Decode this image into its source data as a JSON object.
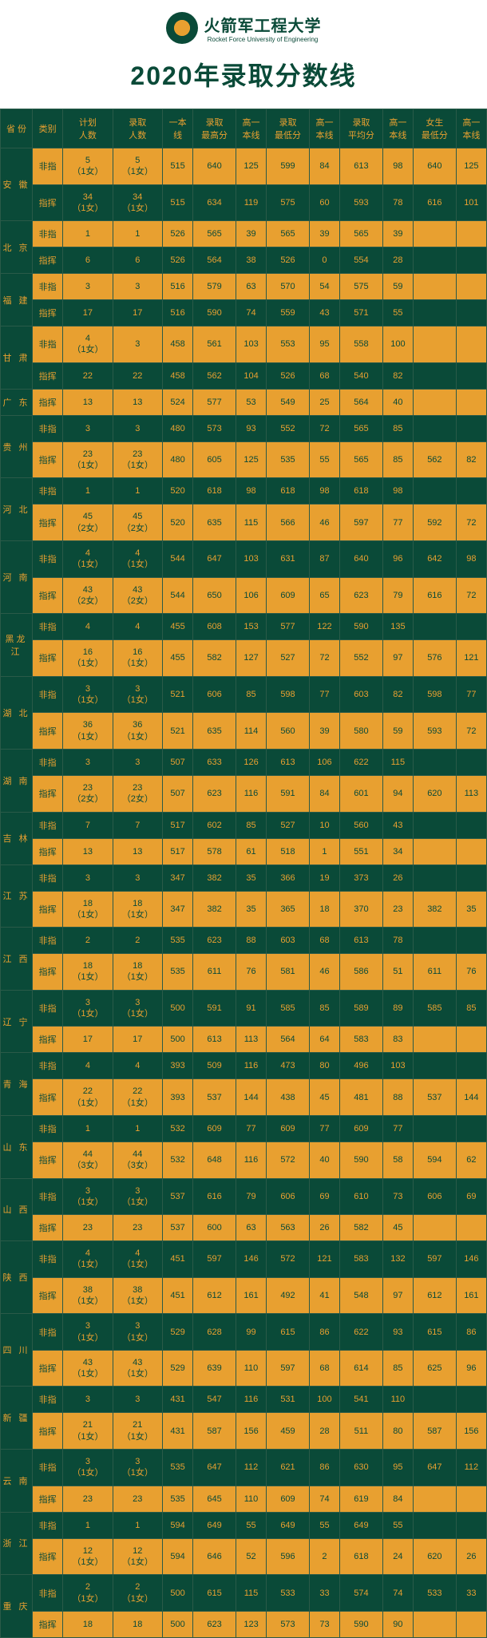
{
  "header": {
    "uni_name": "火箭军工程大学",
    "uni_sub": "Rocket Force University of Engineering",
    "title": "2020年录取分数线"
  },
  "columns": [
    "省 份",
    "类别",
    "计划人数",
    "录取人数",
    "一本线",
    "录取最高分",
    "高一本线",
    "录取最低分",
    "高一本线",
    "录取平均分",
    "高一本线",
    "女生最低分",
    "高一本线"
  ],
  "provinces": [
    {
      "name": "安 徽",
      "rows": [
        {
          "cat": "非指",
          "plan": "5\n（1女）",
          "admit": "5\n（1女）",
          "c": [
            "515",
            "640",
            "125",
            "599",
            "84",
            "613",
            "98",
            "640",
            "125"
          ]
        },
        {
          "cat": "指挥",
          "plan": "34\n（1女）",
          "admit": "34\n（1女）",
          "c": [
            "515",
            "634",
            "119",
            "575",
            "60",
            "593",
            "78",
            "616",
            "101"
          ]
        }
      ]
    },
    {
      "name": "北 京",
      "rows": [
        {
          "cat": "非指",
          "plan": "1",
          "admit": "1",
          "c": [
            "526",
            "565",
            "39",
            "565",
            "39",
            "565",
            "39",
            "",
            ""
          ]
        },
        {
          "cat": "指挥",
          "plan": "6",
          "admit": "6",
          "c": [
            "526",
            "564",
            "38",
            "526",
            "0",
            "554",
            "28",
            "",
            ""
          ]
        }
      ]
    },
    {
      "name": "福 建",
      "rows": [
        {
          "cat": "非指",
          "plan": "3",
          "admit": "3",
          "c": [
            "516",
            "579",
            "63",
            "570",
            "54",
            "575",
            "59",
            "",
            ""
          ]
        },
        {
          "cat": "指挥",
          "plan": "17",
          "admit": "17",
          "c": [
            "516",
            "590",
            "74",
            "559",
            "43",
            "571",
            "55",
            "",
            ""
          ]
        }
      ]
    },
    {
      "name": "甘 肃",
      "rows": [
        {
          "cat": "非指",
          "plan": "4\n（1女）",
          "admit": "3",
          "c": [
            "458",
            "561",
            "103",
            "553",
            "95",
            "558",
            "100",
            "",
            ""
          ]
        },
        {
          "cat": "指挥",
          "plan": "22",
          "admit": "22",
          "c": [
            "458",
            "562",
            "104",
            "526",
            "68",
            "540",
            "82",
            "",
            ""
          ]
        }
      ]
    },
    {
      "name": "广 东",
      "rows": [
        {
          "cat": "指挥",
          "plan": "13",
          "admit": "13",
          "c": [
            "524",
            "577",
            "53",
            "549",
            "25",
            "564",
            "40",
            "",
            ""
          ]
        }
      ]
    },
    {
      "name": "贵 州",
      "rows": [
        {
          "cat": "非指",
          "plan": "3",
          "admit": "3",
          "c": [
            "480",
            "573",
            "93",
            "552",
            "72",
            "565",
            "85",
            "",
            ""
          ]
        },
        {
          "cat": "指挥",
          "plan": "23\n（1女）",
          "admit": "23\n（1女）",
          "c": [
            "480",
            "605",
            "125",
            "535",
            "55",
            "565",
            "85",
            "562",
            "82"
          ]
        }
      ]
    },
    {
      "name": "河 北",
      "rows": [
        {
          "cat": "非指",
          "plan": "1",
          "admit": "1",
          "c": [
            "520",
            "618",
            "98",
            "618",
            "98",
            "618",
            "98",
            "",
            ""
          ]
        },
        {
          "cat": "指挥",
          "plan": "45\n（2女）",
          "admit": "45\n（2女）",
          "c": [
            "520",
            "635",
            "115",
            "566",
            "46",
            "597",
            "77",
            "592",
            "72"
          ]
        }
      ]
    },
    {
      "name": "河 南",
      "rows": [
        {
          "cat": "非指",
          "plan": "4\n（1女）",
          "admit": "4\n（1女）",
          "c": [
            "544",
            "647",
            "103",
            "631",
            "87",
            "640",
            "96",
            "642",
            "98"
          ]
        },
        {
          "cat": "指挥",
          "plan": "43\n（2女）",
          "admit": "43\n（2女）",
          "c": [
            "544",
            "650",
            "106",
            "609",
            "65",
            "623",
            "79",
            "616",
            "72"
          ]
        }
      ]
    },
    {
      "name": "黑龙江",
      "rows": [
        {
          "cat": "非指",
          "plan": "4",
          "admit": "4",
          "c": [
            "455",
            "608",
            "153",
            "577",
            "122",
            "590",
            "135",
            "",
            ""
          ]
        },
        {
          "cat": "指挥",
          "plan": "16\n（1女）",
          "admit": "16\n（1女）",
          "c": [
            "455",
            "582",
            "127",
            "527",
            "72",
            "552",
            "97",
            "576",
            "121"
          ]
        }
      ]
    },
    {
      "name": "湖 北",
      "rows": [
        {
          "cat": "非指",
          "plan": "3\n（1女）",
          "admit": "3\n（1女）",
          "c": [
            "521",
            "606",
            "85",
            "598",
            "77",
            "603",
            "82",
            "598",
            "77"
          ]
        },
        {
          "cat": "指挥",
          "plan": "36\n（1女）",
          "admit": "36\n（1女）",
          "c": [
            "521",
            "635",
            "114",
            "560",
            "39",
            "580",
            "59",
            "593",
            "72"
          ]
        }
      ]
    },
    {
      "name": "湖 南",
      "rows": [
        {
          "cat": "非指",
          "plan": "3",
          "admit": "3",
          "c": [
            "507",
            "633",
            "126",
            "613",
            "106",
            "622",
            "115",
            "",
            ""
          ]
        },
        {
          "cat": "指挥",
          "plan": "23\n（2女）",
          "admit": "23\n（2女）",
          "c": [
            "507",
            "623",
            "116",
            "591",
            "84",
            "601",
            "94",
            "620",
            "113"
          ]
        }
      ]
    },
    {
      "name": "吉 林",
      "rows": [
        {
          "cat": "非指",
          "plan": "7",
          "admit": "7",
          "c": [
            "517",
            "602",
            "85",
            "527",
            "10",
            "560",
            "43",
            "",
            ""
          ]
        },
        {
          "cat": "指挥",
          "plan": "13",
          "admit": "13",
          "c": [
            "517",
            "578",
            "61",
            "518",
            "1",
            "551",
            "34",
            "",
            ""
          ]
        }
      ]
    },
    {
      "name": "江 苏",
      "rows": [
        {
          "cat": "非指",
          "plan": "3",
          "admit": "3",
          "c": [
            "347",
            "382",
            "35",
            "366",
            "19",
            "373",
            "26",
            "",
            ""
          ]
        },
        {
          "cat": "指挥",
          "plan": "18\n（1女）",
          "admit": "18\n（1女）",
          "c": [
            "347",
            "382",
            "35",
            "365",
            "18",
            "370",
            "23",
            "382",
            "35"
          ]
        }
      ]
    },
    {
      "name": "江 西",
      "rows": [
        {
          "cat": "非指",
          "plan": "2",
          "admit": "2",
          "c": [
            "535",
            "623",
            "88",
            "603",
            "68",
            "613",
            "78",
            "",
            ""
          ]
        },
        {
          "cat": "指挥",
          "plan": "18\n（1女）",
          "admit": "18\n（1女）",
          "c": [
            "535",
            "611",
            "76",
            "581",
            "46",
            "586",
            "51",
            "611",
            "76"
          ]
        }
      ]
    },
    {
      "name": "辽 宁",
      "rows": [
        {
          "cat": "非指",
          "plan": "3\n（1女）",
          "admit": "3\n（1女）",
          "c": [
            "500",
            "591",
            "91",
            "585",
            "85",
            "589",
            "89",
            "585",
            "85"
          ]
        },
        {
          "cat": "指挥",
          "plan": "17",
          "admit": "17",
          "c": [
            "500",
            "613",
            "113",
            "564",
            "64",
            "583",
            "83",
            "",
            ""
          ]
        }
      ]
    },
    {
      "name": "青 海",
      "rows": [
        {
          "cat": "非指",
          "plan": "4",
          "admit": "4",
          "c": [
            "393",
            "509",
            "116",
            "473",
            "80",
            "496",
            "103",
            "",
            ""
          ]
        },
        {
          "cat": "指挥",
          "plan": "22\n（1女）",
          "admit": "22\n（1女）",
          "c": [
            "393",
            "537",
            "144",
            "438",
            "45",
            "481",
            "88",
            "537",
            "144"
          ]
        }
      ]
    },
    {
      "name": "山 东",
      "rows": [
        {
          "cat": "非指",
          "plan": "1",
          "admit": "1",
          "c": [
            "532",
            "609",
            "77",
            "609",
            "77",
            "609",
            "77",
            "",
            ""
          ]
        },
        {
          "cat": "指挥",
          "plan": "44\n（3女）",
          "admit": "44\n（3女）",
          "c": [
            "532",
            "648",
            "116",
            "572",
            "40",
            "590",
            "58",
            "594",
            "62"
          ]
        }
      ]
    },
    {
      "name": "山 西",
      "rows": [
        {
          "cat": "非指",
          "plan": "3\n（1女）",
          "admit": "3\n（1女）",
          "c": [
            "537",
            "616",
            "79",
            "606",
            "69",
            "610",
            "73",
            "606",
            "69"
          ]
        },
        {
          "cat": "指挥",
          "plan": "23",
          "admit": "23",
          "c": [
            "537",
            "600",
            "63",
            "563",
            "26",
            "582",
            "45",
            "",
            ""
          ]
        }
      ]
    },
    {
      "name": "陕 西",
      "rows": [
        {
          "cat": "非指",
          "plan": "4\n（1女）",
          "admit": "4\n（1女）",
          "c": [
            "451",
            "597",
            "146",
            "572",
            "121",
            "583",
            "132",
            "597",
            "146"
          ]
        },
        {
          "cat": "指挥",
          "plan": "38\n（1女）",
          "admit": "38\n（1女）",
          "c": [
            "451",
            "612",
            "161",
            "492",
            "41",
            "548",
            "97",
            "612",
            "161"
          ]
        }
      ]
    },
    {
      "name": "四 川",
      "rows": [
        {
          "cat": "非指",
          "plan": "3\n（1女）",
          "admit": "3\n（1女）",
          "c": [
            "529",
            "628",
            "99",
            "615",
            "86",
            "622",
            "93",
            "615",
            "86"
          ]
        },
        {
          "cat": "指挥",
          "plan": "43\n（1女）",
          "admit": "43\n（1女）",
          "c": [
            "529",
            "639",
            "110",
            "597",
            "68",
            "614",
            "85",
            "625",
            "96"
          ]
        }
      ]
    },
    {
      "name": "新 疆",
      "rows": [
        {
          "cat": "非指",
          "plan": "3",
          "admit": "3",
          "c": [
            "431",
            "547",
            "116",
            "531",
            "100",
            "541",
            "110",
            "",
            ""
          ]
        },
        {
          "cat": "指挥",
          "plan": "21\n（1女）",
          "admit": "21\n（1女）",
          "c": [
            "431",
            "587",
            "156",
            "459",
            "28",
            "511",
            "80",
            "587",
            "156"
          ]
        }
      ]
    },
    {
      "name": "云 南",
      "rows": [
        {
          "cat": "非指",
          "plan": "3\n（1女）",
          "admit": "3\n（1女）",
          "c": [
            "535",
            "647",
            "112",
            "621",
            "86",
            "630",
            "95",
            "647",
            "112"
          ]
        },
        {
          "cat": "指挥",
          "plan": "23",
          "admit": "23",
          "c": [
            "535",
            "645",
            "110",
            "609",
            "74",
            "619",
            "84",
            "",
            ""
          ]
        }
      ]
    },
    {
      "name": "浙 江",
      "rows": [
        {
          "cat": "非指",
          "plan": "1",
          "admit": "1",
          "c": [
            "594",
            "649",
            "55",
            "649",
            "55",
            "649",
            "55",
            "",
            ""
          ]
        },
        {
          "cat": "指挥",
          "plan": "12\n（1女）",
          "admit": "12\n（1女）",
          "c": [
            "594",
            "646",
            "52",
            "596",
            "2",
            "618",
            "24",
            "620",
            "26"
          ]
        }
      ]
    },
    {
      "name": "重 庆",
      "rows": [
        {
          "cat": "非指",
          "plan": "2\n（1女）",
          "admit": "2\n（1女）",
          "c": [
            "500",
            "615",
            "115",
            "533",
            "33",
            "574",
            "74",
            "533",
            "33"
          ]
        },
        {
          "cat": "指挥",
          "plan": "18",
          "admit": "18",
          "c": [
            "500",
            "623",
            "123",
            "573",
            "73",
            "590",
            "90",
            "",
            ""
          ]
        }
      ]
    }
  ]
}
